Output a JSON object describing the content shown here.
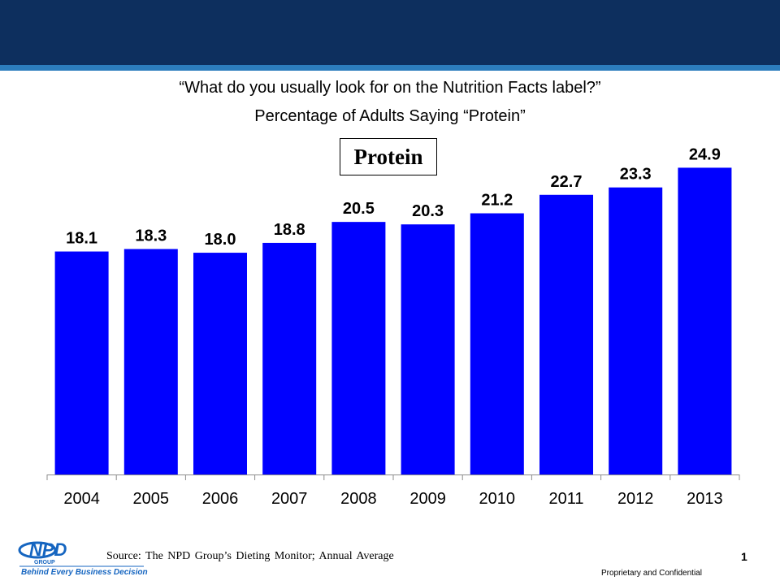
{
  "header": {
    "question": "“What do you usually look for on the Nutrition Facts label?”",
    "subtitle": "Percentage of Adults Saying “Protein”"
  },
  "chart_data": {
    "type": "bar",
    "title": "“What do you usually look for on the Nutrition Facts label?”",
    "subtitle": "Percentage of Adults Saying “Protein”",
    "legend": "Protein",
    "categories": [
      "2004",
      "2005",
      "2006",
      "2007",
      "2008",
      "2009",
      "2010",
      "2011",
      "2012",
      "2013"
    ],
    "values": [
      18.1,
      18.3,
      18.0,
      18.8,
      20.5,
      20.3,
      21.2,
      22.7,
      23.3,
      24.9
    ],
    "value_labels": [
      "18.1",
      "18.3",
      "18.0",
      "18.8",
      "20.5",
      "20.3",
      "21.2",
      "22.7",
      "23.3",
      "24.9"
    ],
    "xlabel": "",
    "ylabel": "",
    "ylim": [
      0,
      27.5
    ],
    "bar_color": "#0000ff",
    "grid": false
  },
  "footer": {
    "source": "Source: The NPD Group’s Dieting Monitor; Annual Average",
    "page_number": "1",
    "proprietary": "Proprietary and Confidential"
  },
  "logo": {
    "brand": "NPD",
    "group": "GROUP",
    "tagline": "Behind Every Business Decision"
  },
  "colors": {
    "header": "#0d2f5e",
    "stripe": "#2c7dbd",
    "bar": "#0000ff",
    "logo": "#1565c0"
  }
}
